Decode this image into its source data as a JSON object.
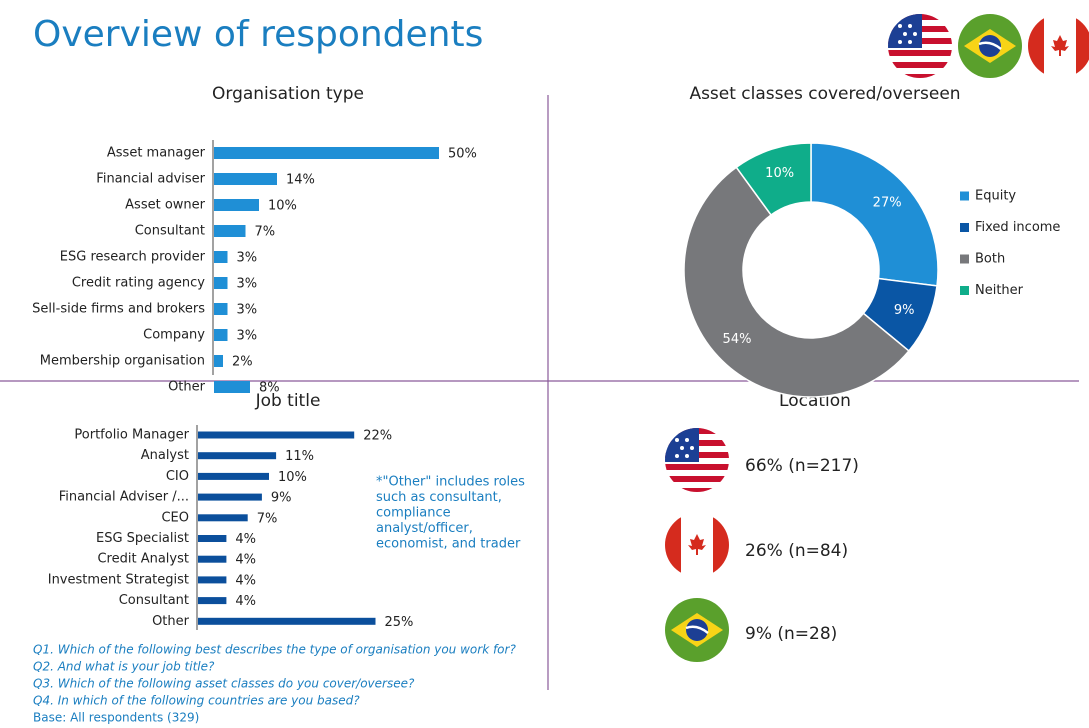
{
  "title": "Overview of respondents",
  "chart_data": [
    {
      "type": "bar",
      "title": "Organisation type",
      "color": "#1f8fd6",
      "categories": [
        "Asset manager",
        "Financial adviser",
        "Asset owner",
        "Consultant",
        "ESG research provider",
        "Credit rating agency",
        "Sell-side firms and brokers",
        "Company",
        "Membership organisation",
        "Other"
      ],
      "values": [
        50,
        14,
        10,
        7,
        3,
        3,
        3,
        3,
        2,
        8
      ],
      "value_labels": [
        "50%",
        "14%",
        "10%",
        "7%",
        "3%",
        "3%",
        "3%",
        "3%",
        "2%",
        "8%"
      ]
    },
    {
      "type": "donut",
      "title": "Asset classes covered/overseen",
      "categories": [
        "Equity",
        "Fixed income",
        "Both",
        "Neither"
      ],
      "values": [
        27,
        9,
        54,
        10
      ],
      "value_labels": [
        "27%",
        "9%",
        "54%",
        "10%"
      ],
      "colors": [
        "#1f8fd6",
        "#0a56a5",
        "#77787b",
        "#0fad8a"
      ],
      "legend": "right"
    },
    {
      "type": "bar",
      "title": "Job title",
      "color": "#0b4f9c",
      "categories": [
        "Portfolio Manager",
        "Analyst",
        "CIO",
        "Financial Adviser /...",
        "CEO",
        "ESG Specialist",
        "Credit Analyst",
        "Investment Strategist",
        "Consultant",
        "Other"
      ],
      "values": [
        22,
        11,
        10,
        9,
        7,
        4,
        4,
        4,
        4,
        25
      ],
      "value_labels": [
        "22%",
        "11%",
        "10%",
        "9%",
        "7%",
        "4%",
        "4%",
        "4%",
        "4%",
        "25%"
      ],
      "annotation": [
        "*\"Other\" includes roles",
        "such as consultant,",
        "compliance",
        "analyst/officer,",
        "economist, and trader"
      ]
    }
  ],
  "location": {
    "title": "Location",
    "items": [
      "66% (n=217)",
      "26% (n=84)",
      "9% (n=28)"
    ]
  },
  "notes": [
    "Q1. Which of the following best describes the type of organisation you work for?",
    "Q2. And what is your job title?",
    "Q3. Which of the following asset classes do you cover/oversee?",
    "Q4. In which of the following countries are you based?"
  ],
  "base": "Base: All respondents (329)"
}
